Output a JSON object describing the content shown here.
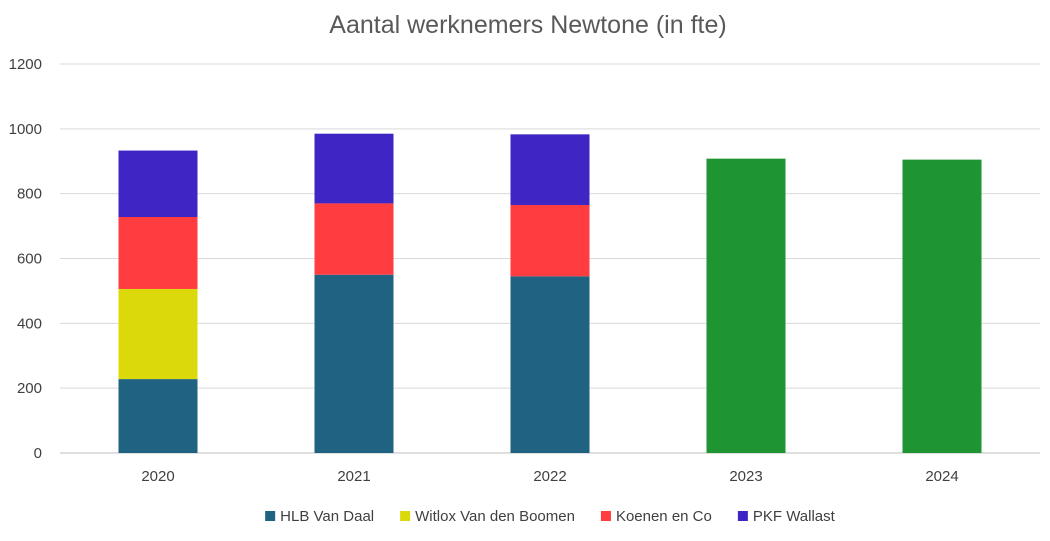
{
  "chart_data": {
    "type": "bar",
    "stacked": true,
    "title": "Aantal werknemers Newtone (in fte)",
    "xlabel": "",
    "ylabel": "",
    "categories": [
      "2020",
      "2021",
      "2022",
      "2023",
      "2024"
    ],
    "ylim": [
      0,
      1200
    ],
    "yticks": [
      0,
      200,
      400,
      600,
      800,
      1000,
      1200
    ],
    "grid": true,
    "legend_position": "bottom",
    "series": [
      {
        "name": "HLB Van Daal",
        "color": "#1f6282",
        "values": [
          228,
          550,
          545,
          null,
          null
        ]
      },
      {
        "name": "Witlox Van den Boomen",
        "color": "#dcd90a",
        "values": [
          278,
          null,
          null,
          null,
          null
        ]
      },
      {
        "name": "Koenen en Co",
        "color": "#ff3c3f",
        "values": [
          222,
          220,
          220,
          null,
          null
        ]
      },
      {
        "name": "PKF Wallast",
        "color": "#3f25c3",
        "values": [
          205,
          215,
          218,
          null,
          null
        ]
      },
      {
        "name": "",
        "color": "#1e9433",
        "values": [
          null,
          null,
          null,
          908,
          905
        ]
      }
    ]
  }
}
